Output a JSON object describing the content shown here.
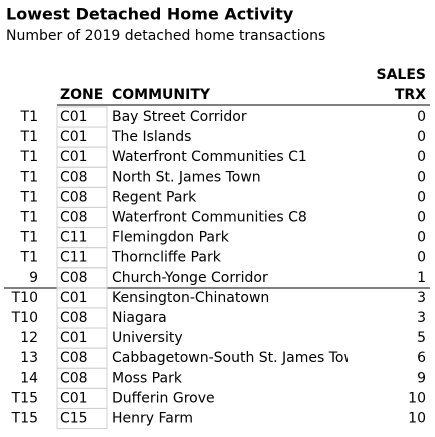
{
  "header": {
    "title": "Lowest Detached Home Activity",
    "subtitle": "Number of 2019 detached home transactions"
  },
  "table": {
    "columns": [
      "",
      "ZONE",
      "COMMUNITY",
      "SALES TRX"
    ],
    "column_label_lines": {
      "sales_top": "SALES",
      "sales_bottom": "TRX"
    },
    "rows": [
      [
        "T1",
        "C01",
        "Bay Street Corridor",
        0
      ],
      [
        "T1",
        "C01",
        "The Islands",
        0
      ],
      [
        "T1",
        "C01",
        "Waterfront Communities C1",
        0
      ],
      [
        "T1",
        "C08",
        "North St. James Town",
        0
      ],
      [
        "T1",
        "C08",
        "Regent Park",
        0
      ],
      [
        "T1",
        "C08",
        "Waterfront Communities C8",
        0
      ],
      [
        "T1",
        "C11",
        "Flemingdon Park",
        0
      ],
      [
        "T1",
        "C11",
        "Thorncliffe Park",
        0
      ],
      [
        "9",
        "C08",
        "Church-Yonge Corridor",
        1
      ],
      [
        "T10",
        "C01",
        "Kensington-Chinatown",
        3
      ],
      [
        "T10",
        "C08",
        "Niagara",
        3
      ],
      [
        "12",
        "C01",
        "University",
        5
      ],
      [
        "13",
        "C08",
        "Cabbagetown-South St. James Town",
        6
      ],
      [
        "14",
        "C08",
        "Moss Park",
        9
      ],
      [
        "T15",
        "C01",
        "Dufferin Grove",
        10
      ],
      [
        "T15",
        "C15",
        "Henry Farm",
        10
      ]
    ]
  }
}
